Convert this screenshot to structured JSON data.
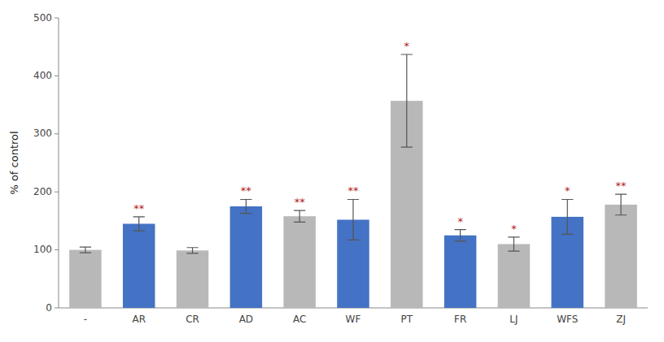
{
  "chart_data": {
    "type": "bar",
    "categories": [
      "-",
      "AR",
      "CR",
      "AD",
      "AC",
      "WF",
      "PT",
      "FR",
      "LJ",
      "WFS",
      "ZJ"
    ],
    "values": [
      100,
      145,
      99,
      175,
      158,
      152,
      357,
      125,
      110,
      157,
      178
    ],
    "errors": [
      5,
      12,
      5,
      12,
      10,
      35,
      80,
      10,
      12,
      30,
      18
    ],
    "colors": [
      "#b8b8b8",
      "#4472c4",
      "#b8b8b8",
      "#4472c4",
      "#b8b8b8",
      "#4472c4",
      "#b8b8b8",
      "#4472c4",
      "#b8b8b8",
      "#4472c4",
      "#b8b8b8"
    ],
    "significance": [
      null,
      "**",
      null,
      "**",
      "**",
      "**",
      "*",
      "*",
      "*",
      "*",
      "**"
    ],
    "ylabel": "% of control",
    "ylim": [
      0,
      500
    ],
    "yticks": [
      0,
      100,
      200,
      300,
      400,
      500
    ],
    "grid": false
  }
}
